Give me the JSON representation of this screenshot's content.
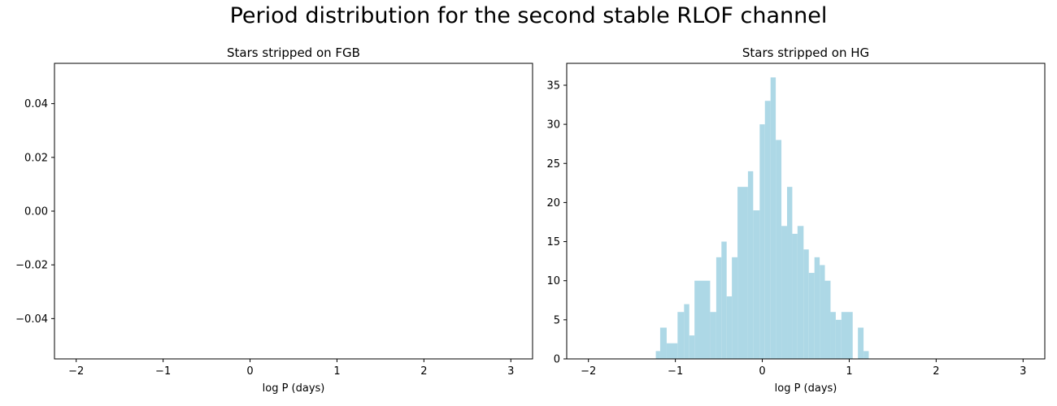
{
  "suptitle": "Period distribution for the second stable RLOF channel",
  "colors": {
    "bar": "#add8e6",
    "axis": "#000000",
    "background": "#ffffff"
  },
  "chart_data": [
    {
      "type": "bar",
      "title": "Stars stripped on FGB",
      "xlabel": "log P (days)",
      "ylabel": "",
      "xlim": [
        -2.25,
        3.25
      ],
      "ylim": [
        -0.055,
        0.055
      ],
      "xticks": [
        -2,
        -1,
        0,
        1,
        2,
        3
      ],
      "xtick_labels": [
        "−2",
        "−1",
        "0",
        "1",
        "2",
        "3"
      ],
      "yticks": [
        -0.04,
        -0.02,
        0.0,
        0.02,
        0.04
      ],
      "ytick_labels": [
        "−0.04",
        "−0.02",
        "0.00",
        "0.02",
        "0.04"
      ],
      "grid": false,
      "bins": []
    },
    {
      "type": "bar",
      "title": "Stars stripped on HG",
      "xlabel": "log P (days)",
      "ylabel": "",
      "xlim": [
        -2.25,
        3.25
      ],
      "ylim": [
        0,
        37.8
      ],
      "xticks": [
        -2,
        -1,
        0,
        1,
        2,
        3
      ],
      "xtick_labels": [
        "−2",
        "−1",
        "0",
        "1",
        "2",
        "3"
      ],
      "yticks": [
        0,
        5,
        10,
        15,
        20,
        25,
        30,
        35
      ],
      "ytick_labels": [
        "0",
        "5",
        "10",
        "15",
        "20",
        "25",
        "30",
        "35"
      ],
      "grid": false,
      "bins": [
        {
          "x0": -1.225,
          "x1": -1.175,
          "count": 1
        },
        {
          "x0": -1.175,
          "x1": -1.1,
          "count": 4
        },
        {
          "x0": -1.1,
          "x1": -0.975,
          "count": 2
        },
        {
          "x0": -0.975,
          "x1": -0.9,
          "count": 6
        },
        {
          "x0": -0.9,
          "x1": -0.84,
          "count": 7
        },
        {
          "x0": -0.84,
          "x1": -0.78,
          "count": 3
        },
        {
          "x0": -0.78,
          "x1": -0.6,
          "count": 10
        },
        {
          "x0": -0.6,
          "x1": -0.53,
          "count": 6
        },
        {
          "x0": -0.53,
          "x1": -0.47,
          "count": 13
        },
        {
          "x0": -0.47,
          "x1": -0.41,
          "count": 15
        },
        {
          "x0": -0.41,
          "x1": -0.35,
          "count": 8
        },
        {
          "x0": -0.35,
          "x1": -0.285,
          "count": 13
        },
        {
          "x0": -0.285,
          "x1": -0.165,
          "count": 22
        },
        {
          "x0": -0.165,
          "x1": -0.105,
          "count": 24
        },
        {
          "x0": -0.105,
          "x1": -0.03,
          "count": 19
        },
        {
          "x0": -0.03,
          "x1": 0.03,
          "count": 30
        },
        {
          "x0": 0.03,
          "x1": 0.095,
          "count": 33
        },
        {
          "x0": 0.095,
          "x1": 0.155,
          "count": 36
        },
        {
          "x0": 0.155,
          "x1": 0.22,
          "count": 28
        },
        {
          "x0": 0.22,
          "x1": 0.285,
          "count": 17
        },
        {
          "x0": 0.285,
          "x1": 0.345,
          "count": 22
        },
        {
          "x0": 0.345,
          "x1": 0.405,
          "count": 16
        },
        {
          "x0": 0.405,
          "x1": 0.475,
          "count": 17
        },
        {
          "x0": 0.475,
          "x1": 0.535,
          "count": 14
        },
        {
          "x0": 0.535,
          "x1": 0.6,
          "count": 11
        },
        {
          "x0": 0.6,
          "x1": 0.66,
          "count": 13
        },
        {
          "x0": 0.66,
          "x1": 0.72,
          "count": 12
        },
        {
          "x0": 0.72,
          "x1": 0.785,
          "count": 10
        },
        {
          "x0": 0.785,
          "x1": 0.845,
          "count": 6
        },
        {
          "x0": 0.845,
          "x1": 0.91,
          "count": 5
        },
        {
          "x0": 0.91,
          "x1": 1.04,
          "count": 6
        },
        {
          "x0": 1.1,
          "x1": 1.165,
          "count": 4
        },
        {
          "x0": 1.165,
          "x1": 1.225,
          "count": 1
        }
      ]
    }
  ]
}
